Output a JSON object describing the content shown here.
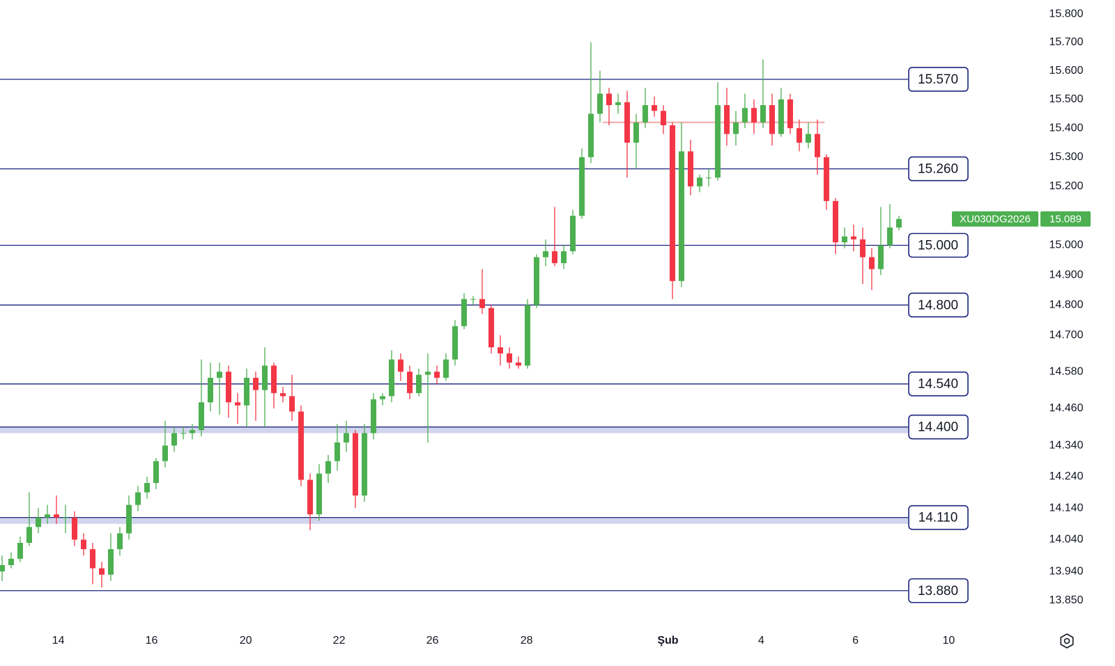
{
  "chart_data": {
    "type": "candlestick",
    "log_scale": true,
    "up_color": "#4caf50",
    "down_color": "#f23645",
    "level_color": "#1a237e",
    "ylim": [
      13780,
      15850
    ],
    "yticks": [
      {
        "value": 15800,
        "label": "15.800"
      },
      {
        "value": 15700,
        "label": "15.700"
      },
      {
        "value": 15600,
        "label": "15.600"
      },
      {
        "value": 15500,
        "label": "15.500"
      },
      {
        "value": 15400,
        "label": "15.400"
      },
      {
        "value": 15300,
        "label": "15.300"
      },
      {
        "value": 15200,
        "label": "15.200"
      },
      {
        "value": 15000,
        "label": "15.000"
      },
      {
        "value": 14900,
        "label": "14.900"
      },
      {
        "value": 14800,
        "label": "14.800"
      },
      {
        "value": 14700,
        "label": "14.700"
      },
      {
        "value": 14580,
        "label": "14.580"
      },
      {
        "value": 14460,
        "label": "14.460"
      },
      {
        "value": 14340,
        "label": "14.340"
      },
      {
        "value": 14240,
        "label": "14.240"
      },
      {
        "value": 14140,
        "label": "14.140"
      },
      {
        "value": 14040,
        "label": "14.040"
      },
      {
        "value": 13940,
        "label": "13.940"
      },
      {
        "value": 13850,
        "label": "13.850"
      }
    ],
    "xlim": [
      -0.23,
      114.39
    ],
    "xticks": [
      {
        "value": 6.2,
        "label": "14"
      },
      {
        "value": 16.5,
        "label": "16"
      },
      {
        "value": 26.9,
        "label": "20"
      },
      {
        "value": 37.2,
        "label": "22"
      },
      {
        "value": 47.5,
        "label": "26"
      },
      {
        "value": 57.9,
        "label": "28"
      },
      {
        "value": 73.5,
        "label": "Şub"
      },
      {
        "value": 83.8,
        "label": "4"
      },
      {
        "value": 94.2,
        "label": "6"
      },
      {
        "value": 104.5,
        "label": "10"
      }
    ],
    "levels": [
      {
        "value": 15570,
        "label": "15.570"
      },
      {
        "value": 15260,
        "label": "15.260"
      },
      {
        "value": 15000,
        "label": "15.000"
      },
      {
        "value": 14800,
        "label": "14.800"
      },
      {
        "value": 14540,
        "label": "14.540"
      },
      {
        "value": 14400,
        "label": "14.400",
        "zone_low": 14380
      },
      {
        "value": 14110,
        "label": "14.110",
        "zone_low": 14090
      },
      {
        "value": 13880,
        "label": "13.880"
      }
    ],
    "ref_line": {
      "value": 15420,
      "x": [
        66.3,
        90.8
      ],
      "color": "#f4b6b6"
    },
    "last_price": {
      "symbol": "XU030DG2026",
      "value": 15089,
      "label": "15.089"
    },
    "x": [
      0,
      1,
      2,
      3,
      4,
      5,
      6,
      7,
      8,
      9,
      10,
      11,
      12,
      13,
      14,
      15,
      16,
      17,
      18,
      19,
      20,
      21,
      22,
      23,
      24,
      25,
      26,
      27,
      28,
      29,
      30,
      31,
      32,
      33,
      34,
      35,
      36,
      37,
      38,
      39,
      40,
      41,
      42,
      43,
      44,
      45,
      46,
      47,
      48,
      49,
      50,
      51,
      52,
      53,
      54,
      55,
      56,
      57,
      58,
      59,
      60,
      61,
      62,
      63,
      64,
      65,
      66,
      67,
      68,
      69,
      70,
      71,
      72,
      73,
      74,
      75,
      76,
      77,
      78,
      79,
      80,
      81,
      82,
      83,
      84,
      85,
      86,
      87,
      88,
      89,
      90,
      91,
      92,
      93,
      94,
      95,
      96,
      97,
      98,
      99
    ],
    "ohlc": [
      [
        13940,
        13990,
        13910,
        13960
      ],
      [
        13960,
        14000,
        13950,
        13980
      ],
      [
        13980,
        14050,
        13970,
        14030
      ],
      [
        14030,
        14190,
        14020,
        14080
      ],
      [
        14080,
        14140,
        14060,
        14110
      ],
      [
        14110,
        14150,
        14090,
        14120
      ],
      [
        14120,
        14180,
        14090,
        14110
      ],
      [
        14110,
        14150,
        14060,
        14110
      ],
      [
        14110,
        14130,
        14020,
        14040
      ],
      [
        14040,
        14060,
        13990,
        14010
      ],
      [
        14010,
        14030,
        13900,
        13950
      ],
      [
        13950,
        13970,
        13890,
        13930
      ],
      [
        13930,
        14060,
        13910,
        14010
      ],
      [
        14010,
        14080,
        13990,
        14060
      ],
      [
        14060,
        14180,
        14040,
        14150
      ],
      [
        14150,
        14210,
        14130,
        14190
      ],
      [
        14190,
        14240,
        14170,
        14220
      ],
      [
        14220,
        14300,
        14200,
        14290
      ],
      [
        14290,
        14420,
        14270,
        14340
      ],
      [
        14340,
        14400,
        14320,
        14380
      ],
      [
        14380,
        14400,
        14360,
        14380
      ],
      [
        14380,
        14410,
        14360,
        14390
      ],
      [
        14390,
        14620,
        14370,
        14480
      ],
      [
        14480,
        14610,
        14450,
        14560
      ],
      [
        14560,
        14610,
        14440,
        14580
      ],
      [
        14580,
        14600,
        14430,
        14480
      ],
      [
        14480,
        14510,
        14410,
        14470
      ],
      [
        14470,
        14590,
        14400,
        14560
      ],
      [
        14560,
        14580,
        14420,
        14520
      ],
      [
        14520,
        14660,
        14400,
        14600
      ],
      [
        14600,
        14610,
        14460,
        14510
      ],
      [
        14510,
        14530,
        14480,
        14500
      ],
      [
        14500,
        14570,
        14420,
        14450
      ],
      [
        14450,
        14470,
        14210,
        14230
      ],
      [
        14230,
        14250,
        14070,
        14120
      ],
      [
        14120,
        14280,
        14100,
        14250
      ],
      [
        14250,
        14310,
        14220,
        14290
      ],
      [
        14290,
        14410,
        14260,
        14350
      ],
      [
        14350,
        14420,
        14320,
        14380
      ],
      [
        14380,
        14390,
        14140,
        14180
      ],
      [
        14180,
        14410,
        14160,
        14380
      ],
      [
        14380,
        14510,
        14360,
        14490
      ],
      [
        14490,
        14510,
        14470,
        14500
      ],
      [
        14500,
        14650,
        14480,
        14620
      ],
      [
        14620,
        14640,
        14550,
        14580
      ],
      [
        14580,
        14600,
        14490,
        14510
      ],
      [
        14510,
        14590,
        14500,
        14570
      ],
      [
        14570,
        14640,
        14350,
        14580
      ],
      [
        14580,
        14600,
        14540,
        14560
      ],
      [
        14560,
        14640,
        14550,
        14620
      ],
      [
        14620,
        14750,
        14600,
        14730
      ],
      [
        14730,
        14840,
        14720,
        14820
      ],
      [
        14820,
        14830,
        14800,
        14820
      ],
      [
        14820,
        14920,
        14770,
        14790
      ],
      [
        14790,
        14800,
        14640,
        14660
      ],
      [
        14660,
        14700,
        14600,
        14640
      ],
      [
        14640,
        14660,
        14590,
        14610
      ],
      [
        14610,
        14630,
        14590,
        14600
      ],
      [
        14600,
        14820,
        14590,
        14800
      ],
      [
        14800,
        14970,
        14790,
        14960
      ],
      [
        14960,
        15020,
        14930,
        14980
      ],
      [
        14980,
        15130,
        14930,
        14940
      ],
      [
        14940,
        15000,
        14920,
        14980
      ],
      [
        14980,
        15120,
        14970,
        15100
      ],
      [
        15100,
        15330,
        15090,
        15300
      ],
      [
        15300,
        15700,
        15280,
        15450
      ],
      [
        15450,
        15600,
        15420,
        15520
      ],
      [
        15520,
        15540,
        15410,
        15480
      ],
      [
        15480,
        15520,
        15450,
        15490
      ],
      [
        15490,
        15530,
        15230,
        15350
      ],
      [
        15350,
        15450,
        15260,
        15420
      ],
      [
        15420,
        15540,
        15400,
        15480
      ],
      [
        15480,
        15510,
        15440,
        15460
      ],
      [
        15460,
        15480,
        15380,
        15410
      ],
      [
        15410,
        15420,
        14820,
        14880
      ],
      [
        14880,
        15420,
        14860,
        15320
      ],
      [
        15320,
        15360,
        15170,
        15200
      ],
      [
        15200,
        15240,
        15180,
        15230
      ],
      [
        15230,
        15260,
        15200,
        15230
      ],
      [
        15230,
        15560,
        15220,
        15480
      ],
      [
        15480,
        15540,
        15340,
        15380
      ],
      [
        15380,
        15460,
        15340,
        15420
      ],
      [
        15420,
        15520,
        15400,
        15470
      ],
      [
        15470,
        15500,
        15380,
        15420
      ],
      [
        15420,
        15640,
        15400,
        15480
      ],
      [
        15480,
        15520,
        15340,
        15380
      ],
      [
        15380,
        15540,
        15370,
        15500
      ],
      [
        15500,
        15520,
        15380,
        15400
      ],
      [
        15400,
        15430,
        15320,
        15350
      ],
      [
        15350,
        15420,
        15330,
        15380
      ],
      [
        15380,
        15430,
        15240,
        15300
      ],
      [
        15300,
        15310,
        15120,
        15150
      ],
      [
        15150,
        15160,
        14970,
        15010
      ],
      [
        15010,
        15060,
        14990,
        15030
      ],
      [
        15030,
        15070,
        14980,
        15020
      ],
      [
        15020,
        15060,
        14870,
        14960
      ],
      [
        14960,
        14990,
        14850,
        14920
      ],
      [
        14920,
        15130,
        14900,
        15000
      ],
      [
        15000,
        15140,
        14990,
        15060
      ],
      [
        15060,
        15100,
        15050,
        15089
      ]
    ]
  }
}
